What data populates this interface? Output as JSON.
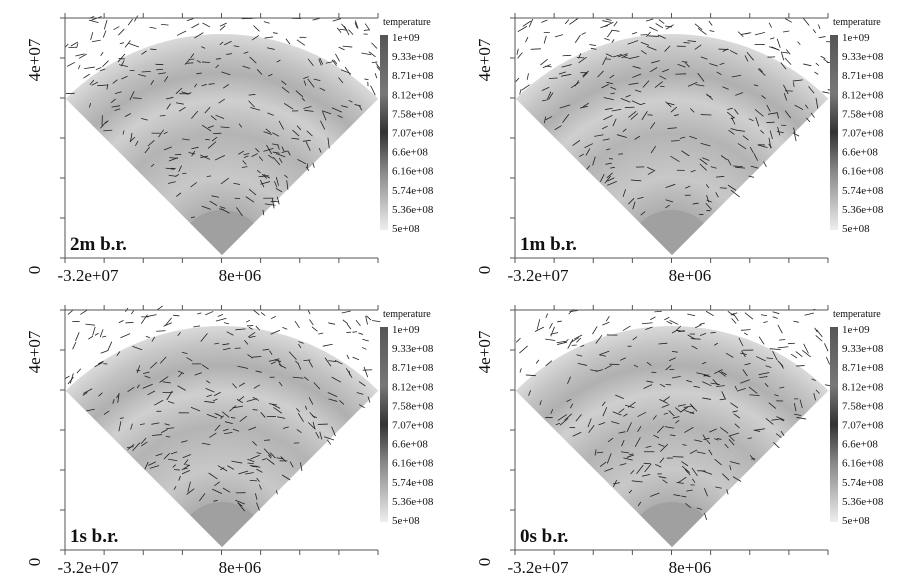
{
  "panels": [
    {
      "label": "2m b.r.",
      "xticks": [
        "-3.2e+07",
        "8e+06"
      ],
      "yticks": [
        "0",
        "4e+07"
      ],
      "colorbar": {
        "title": "temperature",
        "labels": [
          "1e+09",
          "9.33e+08",
          "8.71e+08",
          "8.12e+08",
          "7.58e+08",
          "7.07e+08",
          "6.6e+08",
          "6.16e+08",
          "5.74e+08",
          "5.36e+08",
          "5e+08"
        ]
      }
    },
    {
      "label": "1m b.r.",
      "xticks": [
        "-3.2e+07",
        "8e+06"
      ],
      "yticks": [
        "0",
        "4e+07"
      ],
      "colorbar": {
        "title": "temperature",
        "labels": [
          "1e+09",
          "9.33e+08",
          "8.71e+08",
          "8.12e+08",
          "7.58e+08",
          "7.07e+08",
          "6.6e+08",
          "6.16e+08",
          "5.74e+08",
          "5.36e+08",
          "5e+08"
        ]
      }
    },
    {
      "label": "1s b.r.",
      "xticks": [
        "-3.2e+07",
        "8e+06"
      ],
      "yticks": [
        "0",
        "4e+07"
      ],
      "colorbar": {
        "title": "temperature",
        "labels": [
          "1e+09",
          "9.33e+08",
          "8.71e+08",
          "8.12e+08",
          "7.58e+08",
          "7.07e+08",
          "6.6e+08",
          "6.16e+08",
          "5.74e+08",
          "5.36e+08",
          "5e+08"
        ]
      }
    },
    {
      "label": "0s b.r.",
      "xticks": [
        "-3.2e+07",
        "8e+06"
      ],
      "yticks": [
        "0",
        "4e+07"
      ],
      "colorbar": {
        "title": "temperature",
        "labels": [
          "1e+09",
          "9.33e+08",
          "8.71e+08",
          "8.12e+08",
          "7.58e+08",
          "7.07e+08",
          "6.6e+08",
          "6.16e+08",
          "5.74e+08",
          "5.36e+08",
          "5e+08"
        ]
      }
    }
  ]
}
